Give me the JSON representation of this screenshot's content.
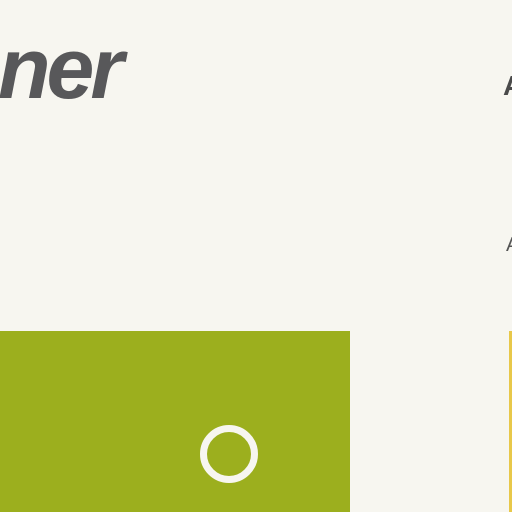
{
  "header": {
    "title": "ner",
    "right_edge_glyph": "A",
    "right_mid_glyph": "A"
  },
  "cards": [
    {
      "color": "#9caf1e",
      "control": {
        "icon": "circle-outline-icon",
        "selected": false
      }
    },
    {
      "color": "#e8c84a"
    }
  ],
  "colors": {
    "background": "#f7f6f0",
    "title_text": "#58585a"
  }
}
